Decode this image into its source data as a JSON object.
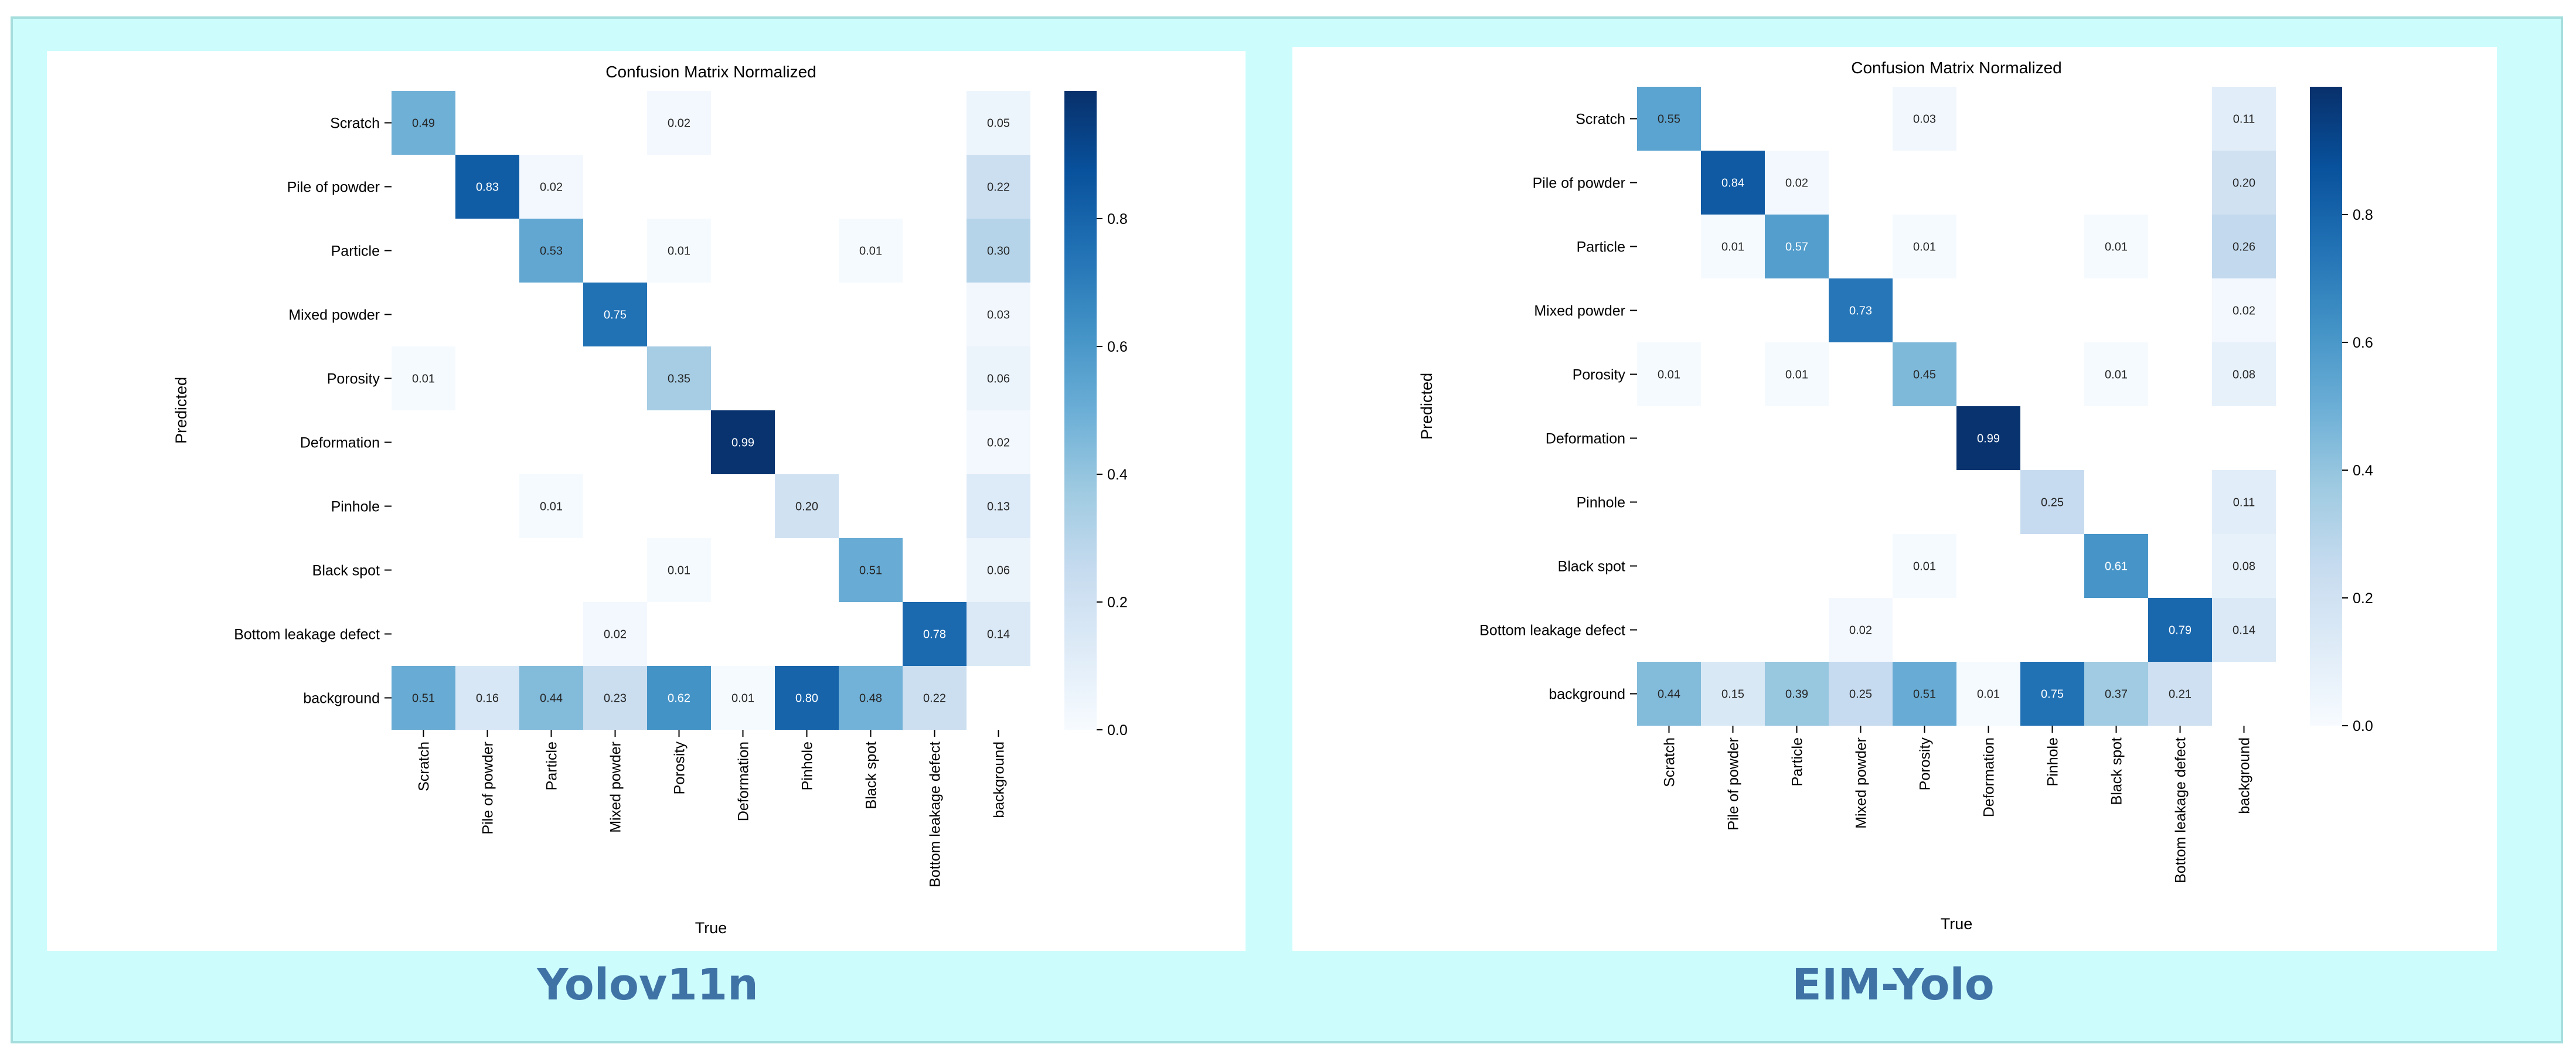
{
  "panels": [
    {
      "name": "Yolov11n",
      "chart_data": {
        "type": "heatmap",
        "title": "Confusion Matrix Normalized",
        "xlabel": "True",
        "ylabel": "Predicted",
        "rows": [
          "Scratch",
          "Pile of powder",
          "Particle",
          "Mixed powder",
          "Porosity",
          "Deformation",
          "Pinhole",
          "Black spot",
          "Bottom leakage defect",
          "background"
        ],
        "cols": [
          "Scratch",
          "Pile of powder",
          "Particle",
          "Mixed powder",
          "Porosity",
          "Deformation",
          "Pinhole",
          "Black spot",
          "Bottom leakage defect",
          "background"
        ],
        "matrix": [
          [
            0.49,
            null,
            null,
            null,
            0.02,
            null,
            null,
            null,
            null,
            0.05
          ],
          [
            null,
            0.83,
            0.02,
            null,
            null,
            null,
            null,
            null,
            null,
            0.22
          ],
          [
            null,
            null,
            0.53,
            null,
            0.01,
            null,
            null,
            0.01,
            null,
            0.3
          ],
          [
            null,
            null,
            null,
            0.75,
            null,
            null,
            null,
            null,
            null,
            0.03
          ],
          [
            0.01,
            null,
            null,
            null,
            0.35,
            null,
            null,
            null,
            null,
            0.06
          ],
          [
            null,
            null,
            null,
            null,
            null,
            0.99,
            null,
            null,
            null,
            0.02
          ],
          [
            null,
            null,
            0.01,
            null,
            null,
            null,
            0.2,
            null,
            null,
            0.13
          ],
          [
            null,
            null,
            null,
            null,
            0.01,
            null,
            null,
            0.51,
            null,
            0.06
          ],
          [
            null,
            null,
            null,
            0.02,
            null,
            null,
            null,
            null,
            0.78,
            0.14
          ],
          [
            0.51,
            0.16,
            0.44,
            0.23,
            0.62,
            0.01,
            0.8,
            0.48,
            0.22,
            null
          ]
        ],
        "colorbar": {
          "range": [
            0.0,
            1.0
          ],
          "ticks": [
            "0.0",
            "0.2",
            "0.4",
            "0.6",
            "0.8"
          ]
        },
        "colormap": "Blues"
      }
    },
    {
      "name": "EIM-Yolo",
      "chart_data": {
        "type": "heatmap",
        "title": "Confusion Matrix Normalized",
        "xlabel": "True",
        "ylabel": "Predicted",
        "rows": [
          "Scratch",
          "Pile of powder",
          "Particle",
          "Mixed powder",
          "Porosity",
          "Deformation",
          "Pinhole",
          "Black spot",
          "Bottom leakage defect",
          "background"
        ],
        "cols": [
          "Scratch",
          "Pile of powder",
          "Particle",
          "Mixed powder",
          "Porosity",
          "Deformation",
          "Pinhole",
          "Black spot",
          "Bottom leakage defect",
          "background"
        ],
        "matrix": [
          [
            0.55,
            null,
            null,
            null,
            0.03,
            null,
            null,
            null,
            null,
            0.11
          ],
          [
            null,
            0.84,
            0.02,
            null,
            null,
            null,
            null,
            null,
            null,
            0.2
          ],
          [
            null,
            0.01,
            0.57,
            null,
            0.01,
            null,
            null,
            0.01,
            null,
            0.26
          ],
          [
            null,
            null,
            null,
            0.73,
            null,
            null,
            null,
            null,
            null,
            0.02
          ],
          [
            0.01,
            null,
            0.01,
            null,
            0.45,
            null,
            null,
            0.01,
            null,
            0.08
          ],
          [
            null,
            null,
            null,
            null,
            null,
            0.99,
            null,
            null,
            null,
            null
          ],
          [
            null,
            null,
            null,
            null,
            null,
            null,
            0.25,
            null,
            null,
            0.11
          ],
          [
            null,
            null,
            null,
            null,
            0.01,
            null,
            null,
            0.61,
            null,
            0.08
          ],
          [
            null,
            null,
            null,
            0.02,
            null,
            null,
            null,
            null,
            0.79,
            0.14
          ],
          [
            0.44,
            0.15,
            0.39,
            0.25,
            0.51,
            0.01,
            0.75,
            0.37,
            0.21,
            null
          ]
        ],
        "colorbar": {
          "range": [
            0.0,
            1.0
          ],
          "ticks": [
            "0.0",
            "0.2",
            "0.4",
            "0.6",
            "0.8"
          ]
        },
        "colormap": "Blues"
      }
    }
  ]
}
